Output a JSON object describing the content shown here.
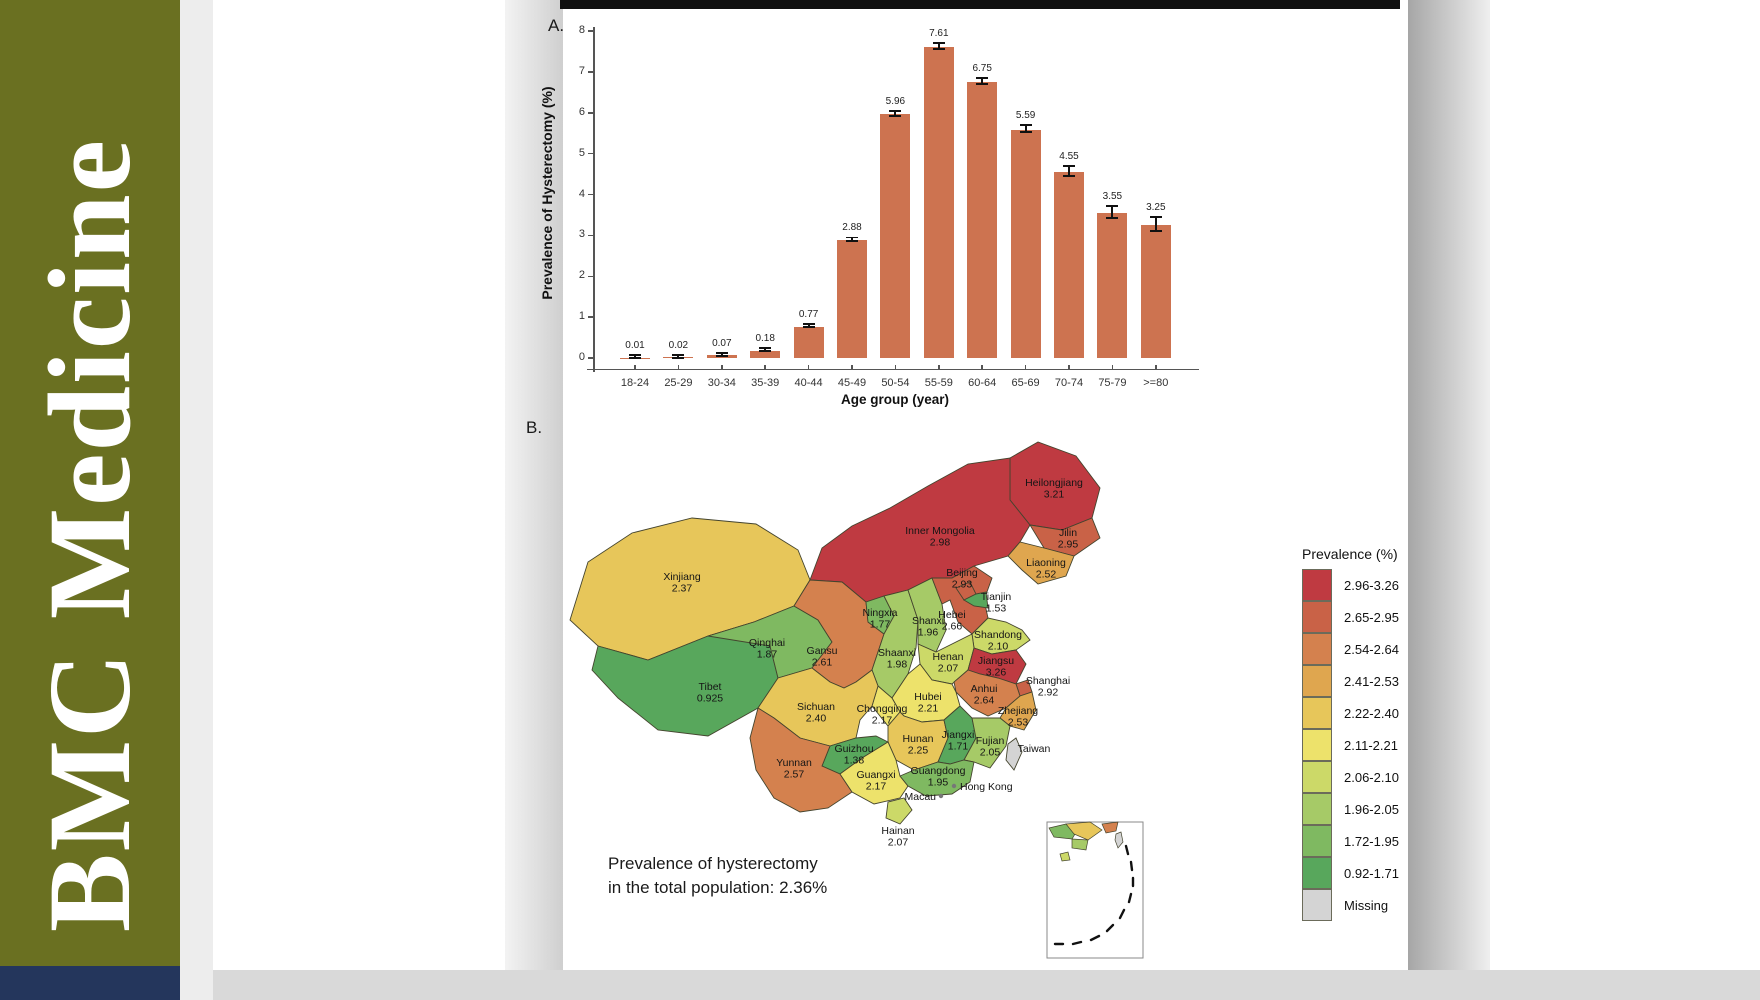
{
  "sidebar": {
    "journal_title": "BMC Medicine",
    "brand_color": "#6a7021",
    "footer_color": "#24365c"
  },
  "panel_a_label": "A.",
  "panel_b_label": "B.",
  "chart_data": [
    {
      "type": "bar",
      "title": "",
      "xlabel": "Age group (year)",
      "ylabel": "Prevalence of Hysterectomy (%)",
      "ylim": [
        0,
        8
      ],
      "yticks": [
        0,
        1,
        2,
        3,
        4,
        5,
        6,
        7,
        8
      ],
      "grid": false,
      "bar_color": "#cd7350",
      "categories": [
        "18-24",
        "25-29",
        "30-34",
        "35-39",
        "40-44",
        "45-49",
        "50-54",
        "55-59",
        "60-64",
        "65-69",
        "70-74",
        "75-79",
        ">=80"
      ],
      "values": [
        0.01,
        0.02,
        0.07,
        0.18,
        0.77,
        2.88,
        5.96,
        7.61,
        6.75,
        5.59,
        4.55,
        3.55,
        3.25
      ],
      "value_labels": [
        "0.01",
        "0.02",
        "0.07",
        "0.18",
        "0.77",
        "2.88",
        "5.96",
        "7.61",
        "6.75",
        "5.59",
        "4.55",
        "3.55",
        "3.25"
      ],
      "errors": [
        0.01,
        0.01,
        0.015,
        0.025,
        0.03,
        0.045,
        0.06,
        0.07,
        0.07,
        0.08,
        0.12,
        0.14,
        0.17
      ]
    },
    {
      "type": "choropleth",
      "region_set": "China provinces",
      "annotation_lines": [
        "Prevalence of hysterectomy",
        "in the total population: 2.36%"
      ],
      "legend": {
        "title": "Prevalence (%)",
        "bins": [
          {
            "label": "2.96-3.26",
            "color": "#bf3a41"
          },
          {
            "label": "2.65-2.95",
            "color": "#c96247"
          },
          {
            "label": "2.54-2.64",
            "color": "#d4814e"
          },
          {
            "label": "2.41-2.53",
            "color": "#dfa64f"
          },
          {
            "label": "2.22-2.40",
            "color": "#e7c65a"
          },
          {
            "label": "2.11-2.21",
            "color": "#ede26b"
          },
          {
            "label": "2.06-2.10",
            "color": "#ccd968"
          },
          {
            "label": "1.96-2.05",
            "color": "#a6ca67"
          },
          {
            "label": "1.72-1.95",
            "color": "#7fb961"
          },
          {
            "label": "0.92-1.71",
            "color": "#58a75c"
          },
          {
            "label": "Missing",
            "color": "#d4d4d4"
          }
        ]
      },
      "regions": [
        {
          "id": "heilongjiang",
          "name": "Heilongjiang",
          "value": "3.21",
          "color": "#bf3a41"
        },
        {
          "id": "inner_mongolia",
          "name": "Inner Mongolia",
          "value": "2.98",
          "color": "#bf3a41"
        },
        {
          "id": "jilin",
          "name": "Jilin",
          "value": "2.95",
          "color": "#c96247"
        },
        {
          "id": "liaoning",
          "name": "Liaoning",
          "value": "2.52",
          "color": "#dfa64f"
        },
        {
          "id": "xinjiang",
          "name": "Xinjiang",
          "value": "2.37",
          "color": "#e7c65a"
        },
        {
          "id": "tibet",
          "name": "Tibet",
          "value": "0.925",
          "color": "#58a75c"
        },
        {
          "id": "qinghai",
          "name": "Qinghai",
          "value": "1.87",
          "color": "#7fb961"
        },
        {
          "id": "gansu",
          "name": "Gansu",
          "value": "2.61",
          "color": "#d4814e"
        },
        {
          "id": "ningxia",
          "name": "Ningxia",
          "value": "1.77",
          "color": "#7fb961"
        },
        {
          "id": "shaanxi",
          "name": "Shaanxi",
          "value": "1.98",
          "color": "#a6ca67"
        },
        {
          "id": "shanxi",
          "name": "Shanxi",
          "value": "1.96",
          "color": "#a6ca67"
        },
        {
          "id": "hebei",
          "name": "Hebei",
          "value": "2.66",
          "color": "#c96247"
        },
        {
          "id": "beijing",
          "name": "Beijing",
          "value": "2.93",
          "color": "#c96247"
        },
        {
          "id": "tianjin",
          "name": "Tianjin",
          "value": "1.53",
          "color": "#58a75c"
        },
        {
          "id": "shandong",
          "name": "Shandong",
          "value": "2.10",
          "color": "#ccd968"
        },
        {
          "id": "henan",
          "name": "Henan",
          "value": "2.07",
          "color": "#ccd968"
        },
        {
          "id": "jiangsu",
          "name": "Jiangsu",
          "value": "3.26",
          "color": "#bf3a41"
        },
        {
          "id": "shanghai",
          "name": "Shanghai",
          "value": "2.92",
          "color": "#c96247"
        },
        {
          "id": "anhui",
          "name": "Anhui",
          "value": "2.64",
          "color": "#d4814e"
        },
        {
          "id": "zhejiang",
          "name": "Zhejiang",
          "value": "2.53",
          "color": "#dfa64f"
        },
        {
          "id": "hubei",
          "name": "Hubei",
          "value": "2.21",
          "color": "#ede26b"
        },
        {
          "id": "chongqing",
          "name": "Chongqing",
          "value": "2.17",
          "color": "#ede26b"
        },
        {
          "id": "sichuan",
          "name": "Sichuan",
          "value": "2.40",
          "color": "#e7c65a"
        },
        {
          "id": "hunan",
          "name": "Hunan",
          "value": "2.25",
          "color": "#e7c65a"
        },
        {
          "id": "jiangxi",
          "name": "Jiangxi",
          "value": "1.71",
          "color": "#58a75c"
        },
        {
          "id": "fujian",
          "name": "Fujian",
          "value": "2.05",
          "color": "#a6ca67"
        },
        {
          "id": "guizhou",
          "name": "Guizhou",
          "value": "1.38",
          "color": "#58a75c"
        },
        {
          "id": "yunnan",
          "name": "Yunnan",
          "value": "2.57",
          "color": "#d4814e"
        },
        {
          "id": "guangxi",
          "name": "Guangxi",
          "value": "2.17",
          "color": "#ede26b"
        },
        {
          "id": "guangdong",
          "name": "Guangdong",
          "value": "1.95",
          "color": "#7fb961"
        },
        {
          "id": "hainan",
          "name": "Hainan",
          "value": "2.07",
          "color": "#ccd968"
        },
        {
          "id": "taiwan",
          "name": "Taiwan",
          "value": null,
          "color": "#d4d4d4"
        },
        {
          "id": "hongkong",
          "name": "Hong Kong",
          "value": null,
          "color": "#d4d4d4"
        },
        {
          "id": "macau",
          "name": "Macau",
          "value": null,
          "color": "#d4d4d4"
        }
      ]
    }
  ]
}
